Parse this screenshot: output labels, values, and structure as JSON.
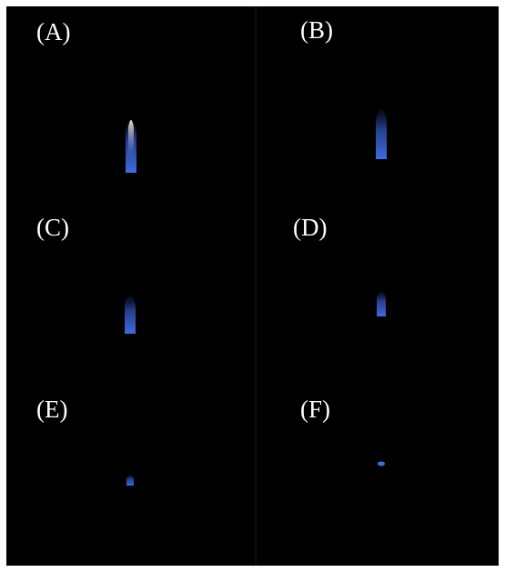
{
  "panels": [
    {
      "label": "(A)"
    },
    {
      "label": "(B)"
    },
    {
      "label": "(C)"
    },
    {
      "label": "(D)"
    },
    {
      "label": "(E)"
    },
    {
      "label": "(F)"
    }
  ]
}
